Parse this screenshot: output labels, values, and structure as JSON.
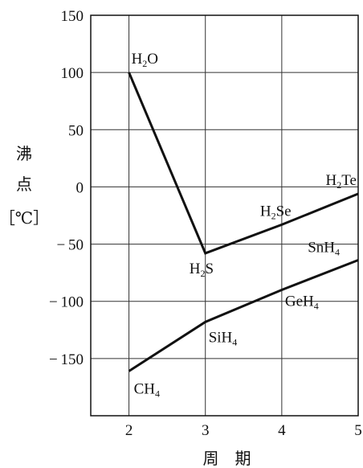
{
  "chart_data": {
    "type": "line",
    "title": "",
    "xlabel": "周　期",
    "ylabel_chars": [
      "沸",
      "点"
    ],
    "ylabel_unit": "［℃］",
    "xlim": [
      1.5,
      5
    ],
    "ylim": [
      -200,
      150
    ],
    "xticks": [
      2,
      3,
      4,
      5
    ],
    "yticks": [
      150,
      100,
      50,
      0,
      -50,
      -100,
      -150
    ],
    "grid": true,
    "series": [
      {
        "points": [
          {
            "x": 2,
            "y": 100,
            "label": "H2O"
          },
          {
            "x": 3,
            "y": -58,
            "label": "H2S"
          },
          {
            "x": 4,
            "y": -33,
            "label": "H2Se"
          },
          {
            "x": 5,
            "y": -6,
            "label": "H2Te"
          }
        ]
      },
      {
        "points": [
          {
            "x": 2,
            "y": -161,
            "label": "CH4"
          },
          {
            "x": 3,
            "y": -118,
            "label": "SiH4"
          },
          {
            "x": 4,
            "y": -90,
            "label": "GeH4"
          },
          {
            "x": 5,
            "y": -64,
            "label": "SnH4"
          }
        ]
      }
    ]
  }
}
